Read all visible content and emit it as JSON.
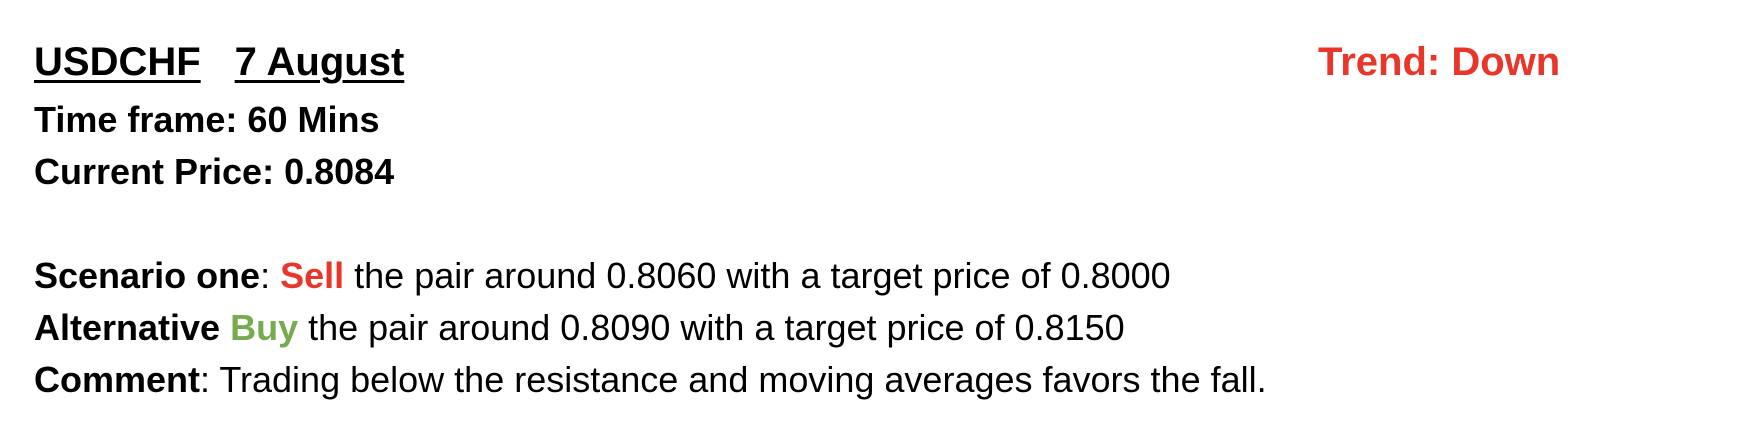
{
  "header": {
    "pair": "USDCHF",
    "date": "7 August",
    "trend": "Trend: Down"
  },
  "details": {
    "time_frame": "Time frame: 60 Mins",
    "current_price": "Current Price: 0.8084"
  },
  "scenario_one": {
    "label": "Scenario one",
    "separator": ": ",
    "action": "Sell",
    "text": " the pair around 0.8060 with a target price of 0.8000"
  },
  "alternative": {
    "label": "Alternative",
    "separator": " ",
    "action": "Buy",
    "text": " the pair around 0.8090 with a target price of 0.8150"
  },
  "comment": {
    "label": "Comment",
    "separator": ": ",
    "text": "Trading below the resistance and moving averages favors the fall."
  },
  "colors": {
    "sell": "#e8362a",
    "buy": "#77ab4f",
    "trend": "#e8362a"
  }
}
